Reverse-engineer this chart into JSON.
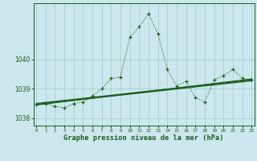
{
  "hours": [
    0,
    1,
    2,
    3,
    4,
    5,
    6,
    7,
    8,
    9,
    10,
    11,
    12,
    13,
    14,
    15,
    16,
    17,
    18,
    19,
    20,
    21,
    22,
    23
  ],
  "main_values": [
    1038.45,
    1038.5,
    1038.4,
    1038.35,
    1038.5,
    1038.55,
    1038.75,
    1039.0,
    1039.35,
    1039.4,
    1040.75,
    1041.1,
    1041.55,
    1040.85,
    1039.65,
    1039.1,
    1039.25,
    1038.7,
    1038.55,
    1039.3,
    1039.45,
    1039.65,
    1039.35,
    1039.3
  ],
  "trend_lines": [
    {
      "x": [
        0,
        23
      ],
      "y": [
        1038.45,
        1039.33
      ]
    },
    {
      "x": [
        0,
        23
      ],
      "y": [
        1038.47,
        1039.27
      ]
    },
    {
      "x": [
        0,
        23
      ],
      "y": [
        1038.5,
        1039.3
      ]
    }
  ],
  "bg_color": "#cce8ee",
  "grid_color": "#99cccc",
  "line_color": "#1a5c1a",
  "xlabel": "Graphe pression niveau de la mer (hPa)",
  "yticks": [
    1038,
    1039,
    1040
  ],
  "ylim": [
    1037.75,
    1041.9
  ],
  "xlim": [
    -0.3,
    23.3
  ]
}
